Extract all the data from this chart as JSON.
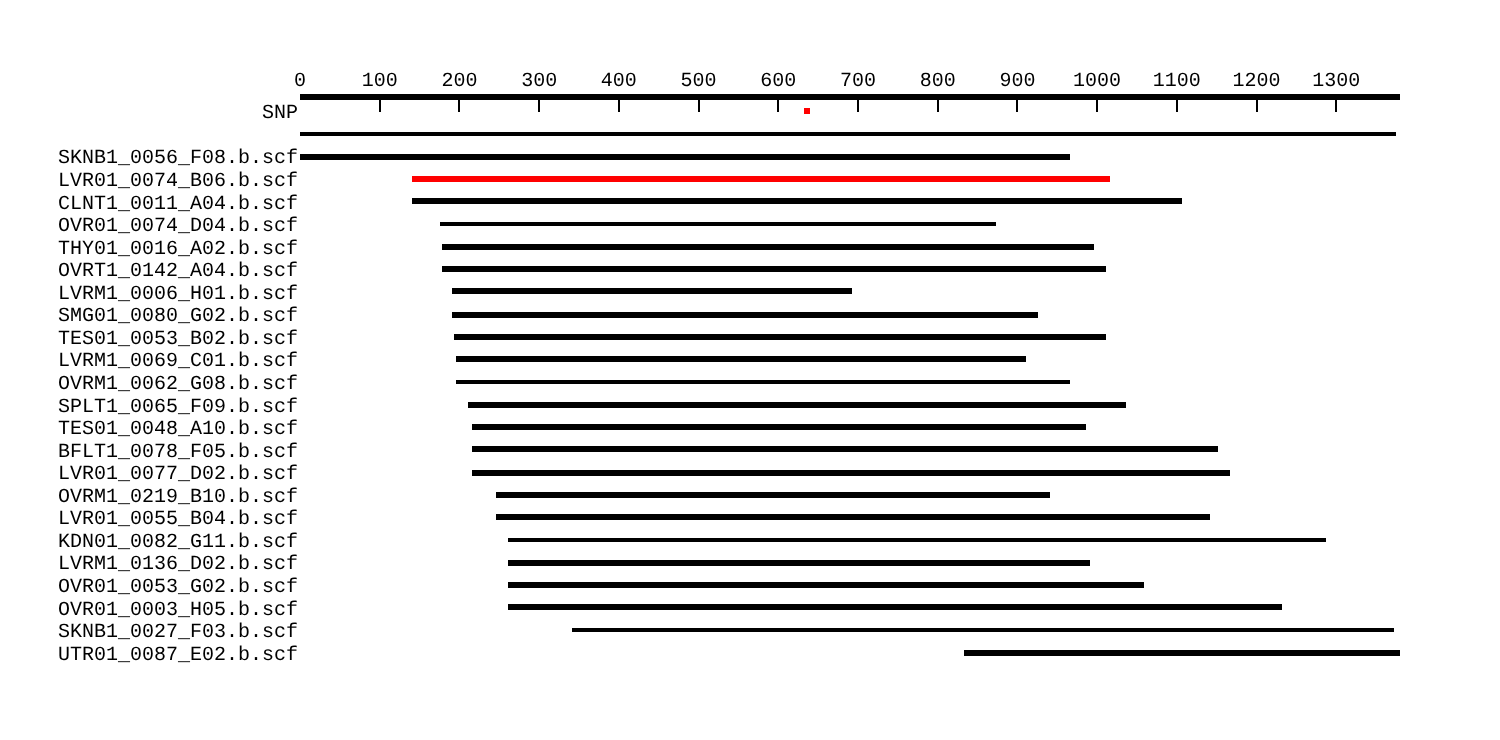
{
  "chart_data": {
    "type": "bar",
    "orientation": "horizontal",
    "categories": [
      "SNP",
      null,
      "SKNB1_0056_F08.b.scf",
      "LVR01_0074_B06.b.scf",
      "CLNT1_0011_A04.b.scf",
      "OVR01_0074_D04.b.scf",
      "THY01_0016_A02.b.scf",
      "OVRT1_0142_A04.b.scf",
      "LVRM1_0006_H01.b.scf",
      "SMG01_0080_G02.b.scf",
      "TES01_0053_B02.b.scf",
      "LVRM1_0069_C01.b.scf",
      "OVRM1_0062_G08.b.scf",
      "SPLT1_0065_F09.b.scf",
      "TES01_0048_A10.b.scf",
      "BFLT1_0078_F05.b.scf",
      "LVR01_0077_D02.b.scf",
      "OVRM1_0219_B10.b.scf",
      "LVR01_0055_B04.b.scf",
      "KDN01_0082_G11.b.scf",
      "LVRM1_0136_D02.b.scf",
      "OVR01_0053_G02.b.scf",
      "OVR01_0003_H05.b.scf",
      "SKNB1_0027_F03.b.scf",
      "UTR01_0087_E02.b.scf"
    ],
    "base": [
      633,
      0,
      0,
      140,
      140,
      175,
      178,
      178,
      190,
      190,
      192,
      195,
      195,
      210,
      217,
      217,
      217,
      245,
      245,
      260,
      262,
      262,
      262,
      340,
      832
    ],
    "values": [
      6,
      1375,
      965,
      875,
      967,
      697,
      819,
      834,
      502,
      735,
      818,
      717,
      770,
      827,
      770,
      935,
      950,
      697,
      897,
      1027,
      730,
      798,
      970,
      1032,
      548
    ],
    "colors": [
      "#ff0000",
      "#000000",
      "#000000",
      "#ff0000",
      "#000000",
      "#000000",
      "#000000",
      "#000000",
      "#000000",
      "#000000",
      "#000000",
      "#000000",
      "#000000",
      "#000000",
      "#000000",
      "#000000",
      "#000000",
      "#000000",
      "#000000",
      "#000000",
      "#000000",
      "#000000",
      "#000000",
      "#000000",
      "#000000"
    ],
    "xlim": [
      0,
      1380
    ],
    "xticks": [
      0,
      100,
      200,
      300,
      400,
      500,
      600,
      700,
      800,
      900,
      1000,
      1100,
      1200,
      1300
    ],
    "legend": false
  }
}
